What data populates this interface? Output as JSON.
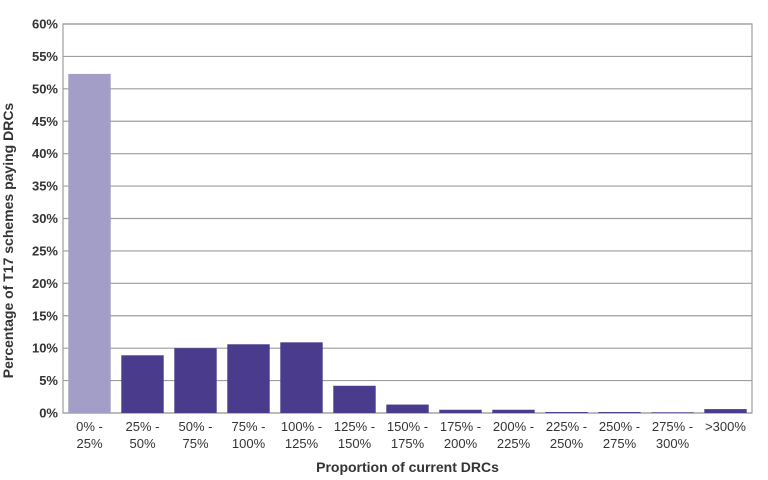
{
  "chart_data": {
    "type": "bar",
    "title": "",
    "xlabel": "Proportion of current DRCs",
    "ylabel": "Percentage of T17 schemes paying DRCs",
    "categories": [
      [
        "0% -",
        "25%"
      ],
      [
        "25% -",
        "50%"
      ],
      [
        "50% -",
        "75%"
      ],
      [
        "75% -",
        "100%"
      ],
      [
        "100% -",
        "125%"
      ],
      [
        "125% -",
        "150%"
      ],
      [
        "150% -",
        "175%"
      ],
      [
        "175% -",
        "200%"
      ],
      [
        "200% -",
        "225%"
      ],
      [
        "225% -",
        "250%"
      ],
      [
        "250% -",
        "275%"
      ],
      [
        "275% -",
        "300%"
      ],
      [
        ">300%"
      ]
    ],
    "values": [
      52.3,
      8.9,
      10.0,
      10.6,
      10.9,
      4.2,
      1.3,
      0.5,
      0.5,
      0.15,
      0.15,
      0.1,
      0.6
    ],
    "bar_colors": [
      "#a29ec8",
      "#4a3b8c",
      "#4a3b8c",
      "#4a3b8c",
      "#4a3b8c",
      "#4a3b8c",
      "#4a3b8c",
      "#4a3b8c",
      "#4a3b8c",
      "#4a3b8c",
      "#4a3b8c",
      "#4a3b8c",
      "#4a3b8c"
    ],
    "ylim": [
      0,
      60
    ],
    "yticks": [
      "0%",
      "5%",
      "10%",
      "15%",
      "20%",
      "25%",
      "30%",
      "35%",
      "40%",
      "45%",
      "50%",
      "55%",
      "60%"
    ],
    "grid": true,
    "legend": "none"
  }
}
